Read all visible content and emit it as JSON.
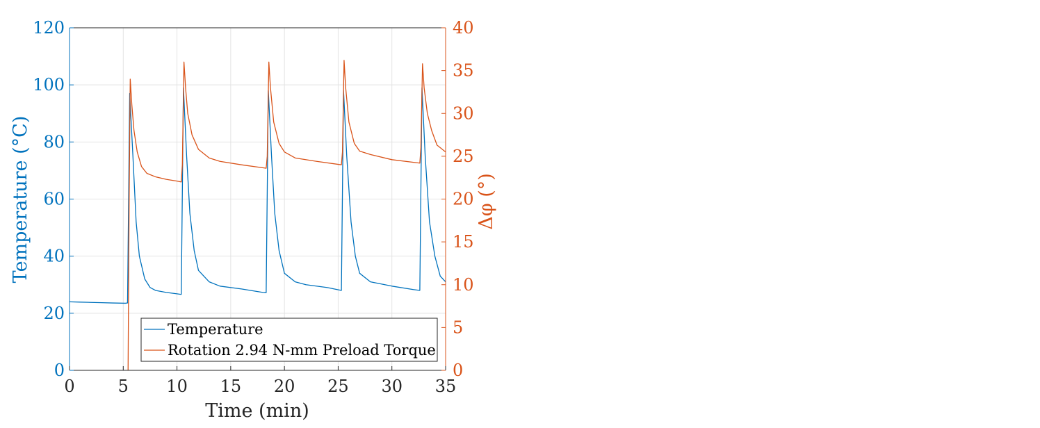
{
  "chart_data": {
    "type": "line",
    "xlabel": "Time (min)",
    "ylabel_left": "Temperature (°C)",
    "ylabel_right": "Δφ (°)",
    "xlim": [
      0,
      35
    ],
    "ylim_left": [
      0,
      120
    ],
    "ylim_right": [
      0,
      40
    ],
    "x_ticks": [
      "0",
      "5",
      "10",
      "15",
      "20",
      "25",
      "30",
      "35"
    ],
    "y_left_ticks": [
      "0",
      "20",
      "40",
      "60",
      "80",
      "100",
      "120"
    ],
    "y_right_ticks": [
      "0",
      "5",
      "10",
      "15",
      "20",
      "25",
      "30",
      "35",
      "40"
    ],
    "grid": true,
    "legend_position": "bottom-right",
    "colors": {
      "left": "#0072bd",
      "right": "#d95319",
      "axis_dark": "#262626"
    },
    "series": [
      {
        "name": "Temperature",
        "axis": "left",
        "color": "#0072bd",
        "points": [
          [
            0,
            24.0
          ],
          [
            1,
            23.9
          ],
          [
            2,
            23.8
          ],
          [
            3,
            23.7
          ],
          [
            4,
            23.6
          ],
          [
            5.2,
            23.5
          ],
          [
            5.4,
            23.6
          ],
          [
            5.6,
            97.0
          ],
          [
            5.9,
            75.0
          ],
          [
            6.2,
            52.0
          ],
          [
            6.5,
            40.0
          ],
          [
            7.0,
            32.0
          ],
          [
            7.5,
            29.0
          ],
          [
            8.0,
            28.0
          ],
          [
            9.0,
            27.3
          ],
          [
            10.0,
            26.8
          ],
          [
            10.4,
            26.6
          ],
          [
            10.6,
            99.0
          ],
          [
            10.9,
            75.0
          ],
          [
            11.2,
            55.0
          ],
          [
            11.6,
            42.0
          ],
          [
            12.0,
            35.0
          ],
          [
            13.0,
            31.0
          ],
          [
            14.0,
            29.5
          ],
          [
            16.0,
            28.5
          ],
          [
            18.0,
            27.3
          ],
          [
            18.3,
            27.2
          ],
          [
            18.5,
            98.0
          ],
          [
            18.8,
            75.0
          ],
          [
            19.1,
            55.0
          ],
          [
            19.5,
            42.0
          ],
          [
            20.0,
            34.0
          ],
          [
            21.0,
            31.0
          ],
          [
            22.0,
            30.0
          ],
          [
            24.0,
            29.0
          ],
          [
            25.3,
            28.0
          ],
          [
            25.5,
            98.0
          ],
          [
            25.8,
            75.0
          ],
          [
            26.2,
            52.0
          ],
          [
            26.6,
            40.0
          ],
          [
            27.0,
            34.0
          ],
          [
            28.0,
            31.0
          ],
          [
            30.0,
            29.5
          ],
          [
            32.0,
            28.3
          ],
          [
            32.6,
            28.0
          ],
          [
            32.8,
            99.0
          ],
          [
            33.1,
            75.0
          ],
          [
            33.5,
            52.0
          ],
          [
            34.0,
            40.0
          ],
          [
            34.5,
            33.0
          ],
          [
            35.0,
            31.0
          ]
        ]
      },
      {
        "name": "Rotation 2.94 N-mm Preload Torque",
        "axis": "right",
        "color": "#d95319",
        "points": [
          [
            5.45,
            0.0
          ],
          [
            5.55,
            20.0
          ],
          [
            5.65,
            34.0
          ],
          [
            5.8,
            31.0
          ],
          [
            6.0,
            28.0
          ],
          [
            6.3,
            25.5
          ],
          [
            6.7,
            23.8
          ],
          [
            7.2,
            23.0
          ],
          [
            8.0,
            22.6
          ],
          [
            9.0,
            22.3
          ],
          [
            10.0,
            22.1
          ],
          [
            10.4,
            22.0
          ],
          [
            10.5,
            24.0
          ],
          [
            10.65,
            36.0
          ],
          [
            10.8,
            33.0
          ],
          [
            11.0,
            30.0
          ],
          [
            11.4,
            27.5
          ],
          [
            12.0,
            25.8
          ],
          [
            13.0,
            24.8
          ],
          [
            14.0,
            24.4
          ],
          [
            16.0,
            24.0
          ],
          [
            18.3,
            23.6
          ],
          [
            18.4,
            25.0
          ],
          [
            18.55,
            36.0
          ],
          [
            18.7,
            33.0
          ],
          [
            19.0,
            29.0
          ],
          [
            19.5,
            26.5
          ],
          [
            20.0,
            25.5
          ],
          [
            21.0,
            24.8
          ],
          [
            23.0,
            24.4
          ],
          [
            25.3,
            24.0
          ],
          [
            25.4,
            25.5
          ],
          [
            25.55,
            36.2
          ],
          [
            25.7,
            33.0
          ],
          [
            26.0,
            29.0
          ],
          [
            26.5,
            26.5
          ],
          [
            27.0,
            25.6
          ],
          [
            28.0,
            25.2
          ],
          [
            30.0,
            24.6
          ],
          [
            32.6,
            24.2
          ],
          [
            32.7,
            26.0
          ],
          [
            32.85,
            35.8
          ],
          [
            33.0,
            33.0
          ],
          [
            33.3,
            30.0
          ],
          [
            33.7,
            28.0
          ],
          [
            34.2,
            26.3
          ],
          [
            35.0,
            25.5
          ]
        ]
      }
    ]
  }
}
